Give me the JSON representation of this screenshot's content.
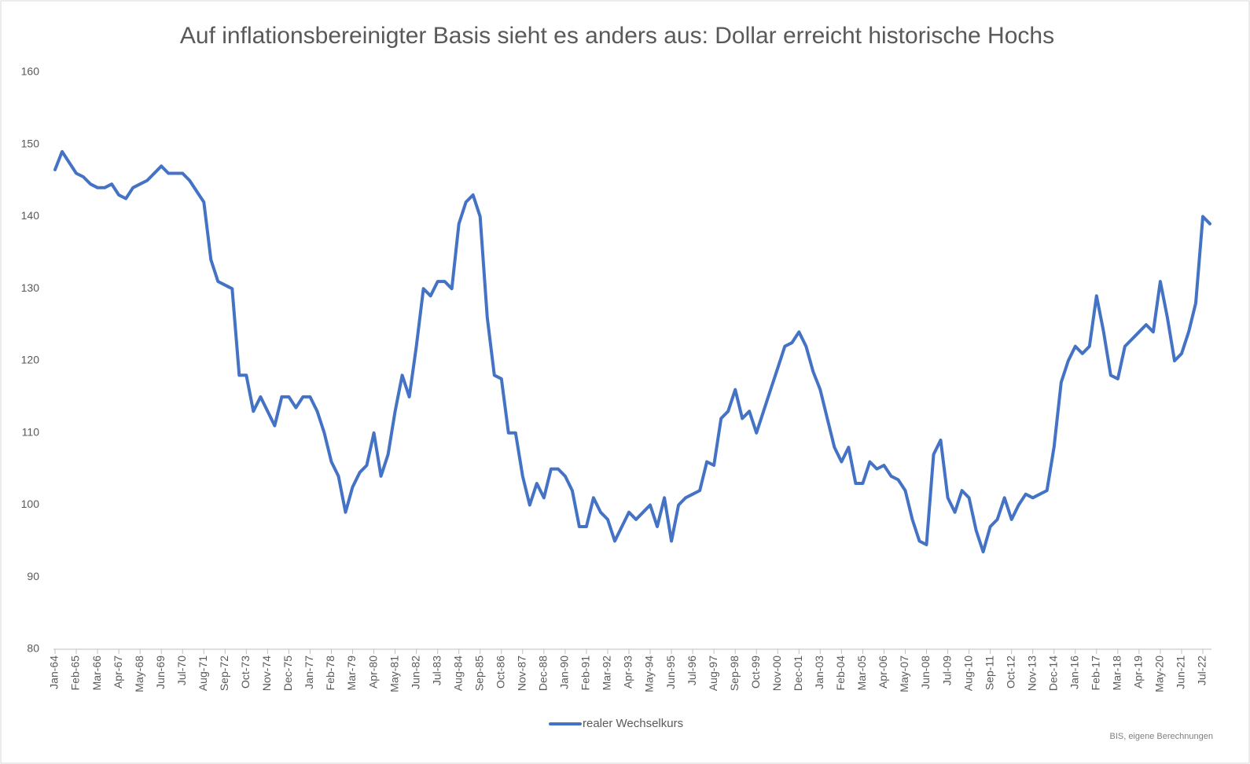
{
  "chart_data": {
    "type": "line",
    "title": "Auf inflationsbereinigter Basis sieht es anders aus: Dollar erreicht historische Hochs",
    "note": "BIS, eigene Berechnungen",
    "categories": [
      "Jan-64",
      null,
      null,
      "Feb-65",
      null,
      null,
      "Mar-66",
      null,
      null,
      "Apr-67",
      null,
      null,
      "May-68",
      null,
      null,
      "Jun-69",
      null,
      null,
      "Jul-70",
      null,
      null,
      "Aug-71",
      null,
      null,
      "Sep-72",
      null,
      null,
      "Oct-73",
      null,
      null,
      "Nov-74",
      null,
      null,
      "Dec-75",
      null,
      null,
      "Jan-77",
      null,
      null,
      "Feb-78",
      null,
      null,
      "Mar-79",
      null,
      null,
      "Apr-80",
      null,
      null,
      "May-81",
      null,
      null,
      "Jun-82",
      null,
      null,
      "Jul-83",
      null,
      null,
      "Aug-84",
      null,
      null,
      "Sep-85",
      null,
      null,
      "Oct-86",
      null,
      null,
      "Nov-87",
      null,
      null,
      "Dec-88",
      null,
      null,
      "Jan-90",
      null,
      null,
      "Feb-91",
      null,
      null,
      "Mar-92",
      null,
      null,
      "Apr-93",
      null,
      null,
      "May-94",
      null,
      null,
      "Jun-95",
      null,
      null,
      "Jul-96",
      null,
      null,
      "Aug-97",
      null,
      null,
      "Sep-98",
      null,
      null,
      "Oct-99",
      null,
      null,
      "Nov-00",
      null,
      null,
      "Dec-01",
      null,
      null,
      "Jan-03",
      null,
      null,
      "Feb-04",
      null,
      null,
      "Mar-05",
      null,
      null,
      "Apr-06",
      null,
      null,
      "May-07",
      null,
      null,
      "Jun-08",
      null,
      null,
      "Jul-09",
      null,
      null,
      "Aug-10",
      null,
      null,
      "Sep-11",
      null,
      null,
      "Oct-12",
      null,
      null,
      "Nov-13",
      null,
      null,
      "Dec-14",
      null,
      null,
      "Jan-16",
      null,
      null,
      "Feb-17",
      null,
      null,
      "Mar-18",
      null,
      null,
      "Apr-19",
      null,
      null,
      "May-20",
      null,
      null,
      "Jun-21",
      null,
      null,
      "Jul-22",
      null
    ],
    "series": [
      {
        "name": "realer Wechselkurs",
        "color": "#4472c4",
        "values": [
          146.5,
          149,
          147.5,
          146,
          145.5,
          144.5,
          144,
          144,
          144.5,
          143,
          142.5,
          144,
          144.5,
          145,
          146,
          147,
          146,
          146,
          146,
          145,
          143.5,
          142,
          134,
          131,
          130.5,
          130,
          118,
          118,
          113,
          115,
          113,
          111,
          115,
          115,
          113.5,
          115,
          115,
          113,
          110,
          106,
          104,
          99,
          102.5,
          104.5,
          105.5,
          110,
          104,
          107,
          113,
          118,
          115,
          122,
          130,
          129,
          131,
          131,
          130,
          139,
          142,
          143,
          140,
          126,
          118,
          117.5,
          110,
          110,
          104,
          100,
          103,
          101,
          105,
          105,
          104,
          102,
          97,
          97,
          101,
          99,
          98,
          95,
          97,
          99,
          98,
          99,
          100,
          97,
          101,
          95,
          100,
          101,
          101.5,
          102,
          106,
          105.5,
          112,
          113,
          116,
          112,
          113,
          110,
          113,
          116,
          119,
          122,
          122.5,
          124,
          122,
          118.5,
          116,
          112,
          108,
          106,
          108,
          103,
          103,
          106,
          105,
          105.5,
          104,
          103.5,
          102,
          98,
          95,
          94.5,
          107,
          109,
          101,
          99,
          102,
          101,
          96.5,
          93.5,
          97,
          98,
          101,
          98,
          100,
          101.5,
          101,
          101.5,
          102,
          108,
          117,
          120,
          122,
          121,
          122,
          129,
          124,
          118,
          117.5,
          122,
          123,
          124,
          125,
          124,
          131,
          126,
          120,
          121,
          124,
          128,
          140,
          139
        ]
      }
    ],
    "ylim": [
      80,
      160
    ],
    "yticks": [
      80,
      90,
      100,
      110,
      120,
      130,
      140,
      150,
      160
    ],
    "grid": false,
    "legend": "bottom"
  }
}
